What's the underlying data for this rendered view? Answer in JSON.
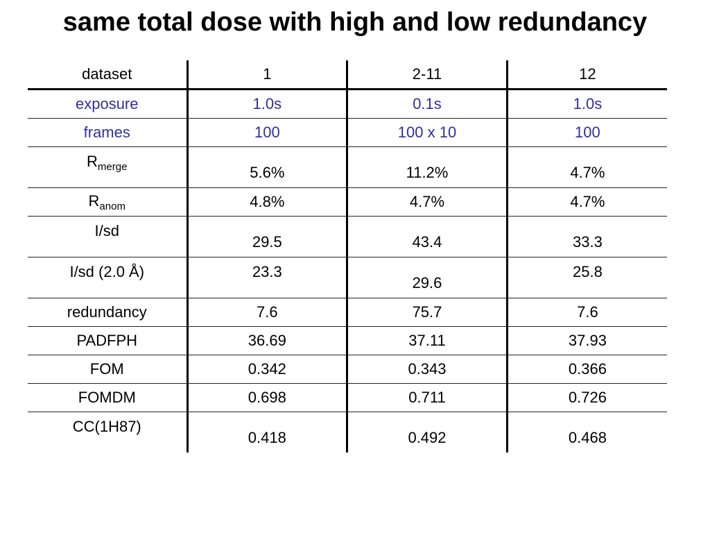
{
  "title": "same total dose with high and low redundancy",
  "table": {
    "header": [
      "dataset",
      "1",
      "2-11",
      "12"
    ],
    "rows": [
      {
        "label": "exposure",
        "values": [
          "1.0s",
          "0.1s",
          "1.0s"
        ]
      },
      {
        "label": "frames",
        "values": [
          "100",
          "100 x 10",
          "100"
        ]
      },
      {
        "label": "R",
        "sub": "merge",
        "values": [
          "5.6%",
          "11.2%",
          "4.7%"
        ]
      },
      {
        "label": "R",
        "sub": "anom",
        "values": [
          "4.8%",
          "4.7%",
          "4.7%"
        ]
      },
      {
        "label": "I/sd",
        "values": [
          "29.5",
          "43.4",
          "33.3"
        ]
      },
      {
        "label": "I/sd (2.0 Å)",
        "values": [
          "23.3",
          "29.6",
          "25.8"
        ]
      },
      {
        "label": "redundancy",
        "values": [
          "7.6",
          "75.7",
          "7.6"
        ]
      },
      {
        "label": "PADFPH",
        "values": [
          "36.69",
          "37.11",
          "37.93"
        ]
      },
      {
        "label": "FOM",
        "values": [
          "0.342",
          "0.343",
          "0.366"
        ]
      },
      {
        "label": "FOMDM",
        "values": [
          "0.698",
          "0.711",
          "0.726"
        ]
      },
      {
        "label": "CC(1H87)",
        "values": [
          "0.418",
          "0.492",
          "0.468"
        ]
      }
    ]
  },
  "colors": {
    "highlight_text": "#2f2f9e",
    "text": "#000000",
    "background": "#ffffff"
  }
}
